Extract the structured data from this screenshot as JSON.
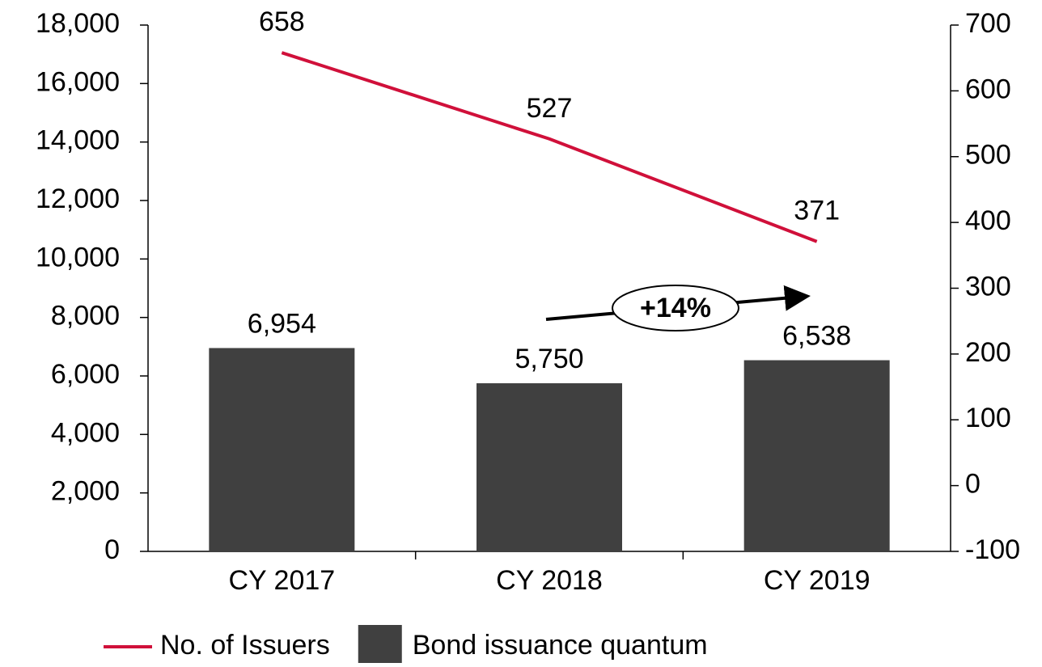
{
  "chart_data": {
    "type": "combo",
    "categories": [
      "CY 2017",
      "CY 2018",
      "CY 2019"
    ],
    "series": [
      {
        "name": "No. of Issuers",
        "type": "line",
        "axis": "y2",
        "color": "#d0103a",
        "values": [
          658,
          527,
          371
        ]
      },
      {
        "name": "Bond issuance quantum",
        "type": "bar",
        "color": "#404040",
        "values": [
          6954,
          5750,
          6538
        ],
        "value_labels": [
          "6,954",
          "5,750",
          "6,538"
        ]
      }
    ],
    "ylim": [
      0,
      18000
    ],
    "yticks": [
      0,
      {
        "value": 2000,
        "label": "2,000"
      },
      {
        "value": 4000,
        "label": "4,000"
      },
      {
        "value": 6000,
        "label": "6,000"
      },
      {
        "value": 8000,
        "label": "8,000"
      },
      {
        "value": 10000,
        "label": "10,000"
      },
      {
        "value": 12000,
        "label": "12,000"
      },
      {
        "value": 14000,
        "label": "14,000"
      },
      {
        "value": 16000,
        "label": "16,000"
      },
      {
        "value": 18000,
        "label": "18,000"
      }
    ],
    "y2lim": [
      -100,
      700
    ],
    "y2ticks": [
      -100,
      0,
      100,
      200,
      300,
      400,
      500,
      600,
      700
    ],
    "annotation": "+14%",
    "legend": "bottom",
    "grid": false
  }
}
